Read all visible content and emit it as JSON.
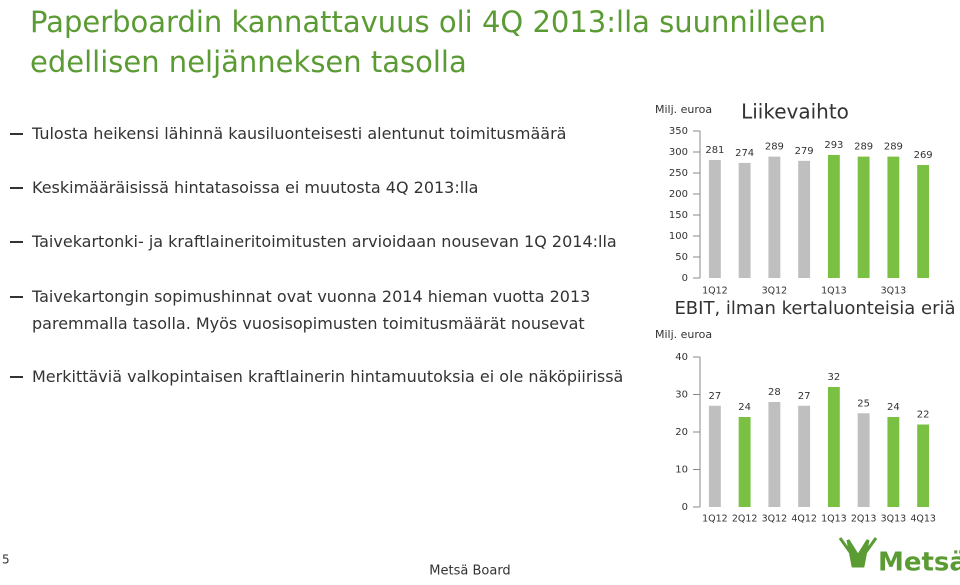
{
  "header": {
    "title": "Paperboardin kannattavuus oli 4Q 2013:lla suunnilleen edellisen neljänneksen tasolla"
  },
  "bullets": [
    "Tulosta heikensi lähinnä kausiluonteisesti alentunut toimitusmäärä",
    "Keskimääräisissä hintatasoissa ei muutosta 4Q 2013:lla",
    "Taivekartonki- ja kraftlaineritoimitusten arvioidaan nousevan 1Q 2014:lla",
    "Taivekartongin sopimushinnat ovat vuonna 2014 hieman vuotta 2013 paremmalla tasolla. Myös vuosisopimusten toimitusmäärät nousevat",
    "Merkittäviä valkopintaisen kraftlainerin hintamuutoksia ei ole näköpiirissä"
  ],
  "chart_data": [
    {
      "type": "bar",
      "title": "Liikevaihto",
      "unit_label": "Milj. euroa",
      "categories": [
        "1Q12",
        null,
        "3Q12",
        null,
        "1Q13",
        null,
        "3Q13",
        null
      ],
      "values": [
        281,
        274,
        289,
        279,
        293,
        289,
        289,
        269
      ],
      "colors": [
        "#bfbfbf",
        "#bfbfbf",
        "#bfbfbf",
        "#bfbfbf",
        "#7ac143",
        "#7ac143",
        "#7ac143",
        "#7ac143"
      ],
      "ylim": [
        0,
        350
      ],
      "yticks": [
        0,
        50,
        100,
        150,
        200,
        250,
        300,
        350
      ]
    },
    {
      "type": "bar",
      "title": "EBIT, ilman kertaluonteisia eriä",
      "unit_label": "Milj. euroa",
      "categories": [
        "1Q12",
        "2Q12",
        "3Q12",
        "4Q12",
        "1Q13",
        "2Q13",
        "3Q13",
        "4Q13"
      ],
      "values": [
        27,
        24,
        28,
        27,
        32,
        25,
        24,
        22
      ],
      "colors": [
        "#bfbfbf",
        "#7ac143",
        "#bfbfbf",
        "#bfbfbf",
        "#7ac143",
        "#bfbfbf",
        "#7ac143",
        "#7ac143"
      ],
      "ylim": [
        0,
        40
      ],
      "yticks": [
        0,
        10,
        20,
        30,
        40
      ]
    }
  ],
  "footer": {
    "page": "5",
    "company": "Metsä Board",
    "logo": "Metsä"
  }
}
